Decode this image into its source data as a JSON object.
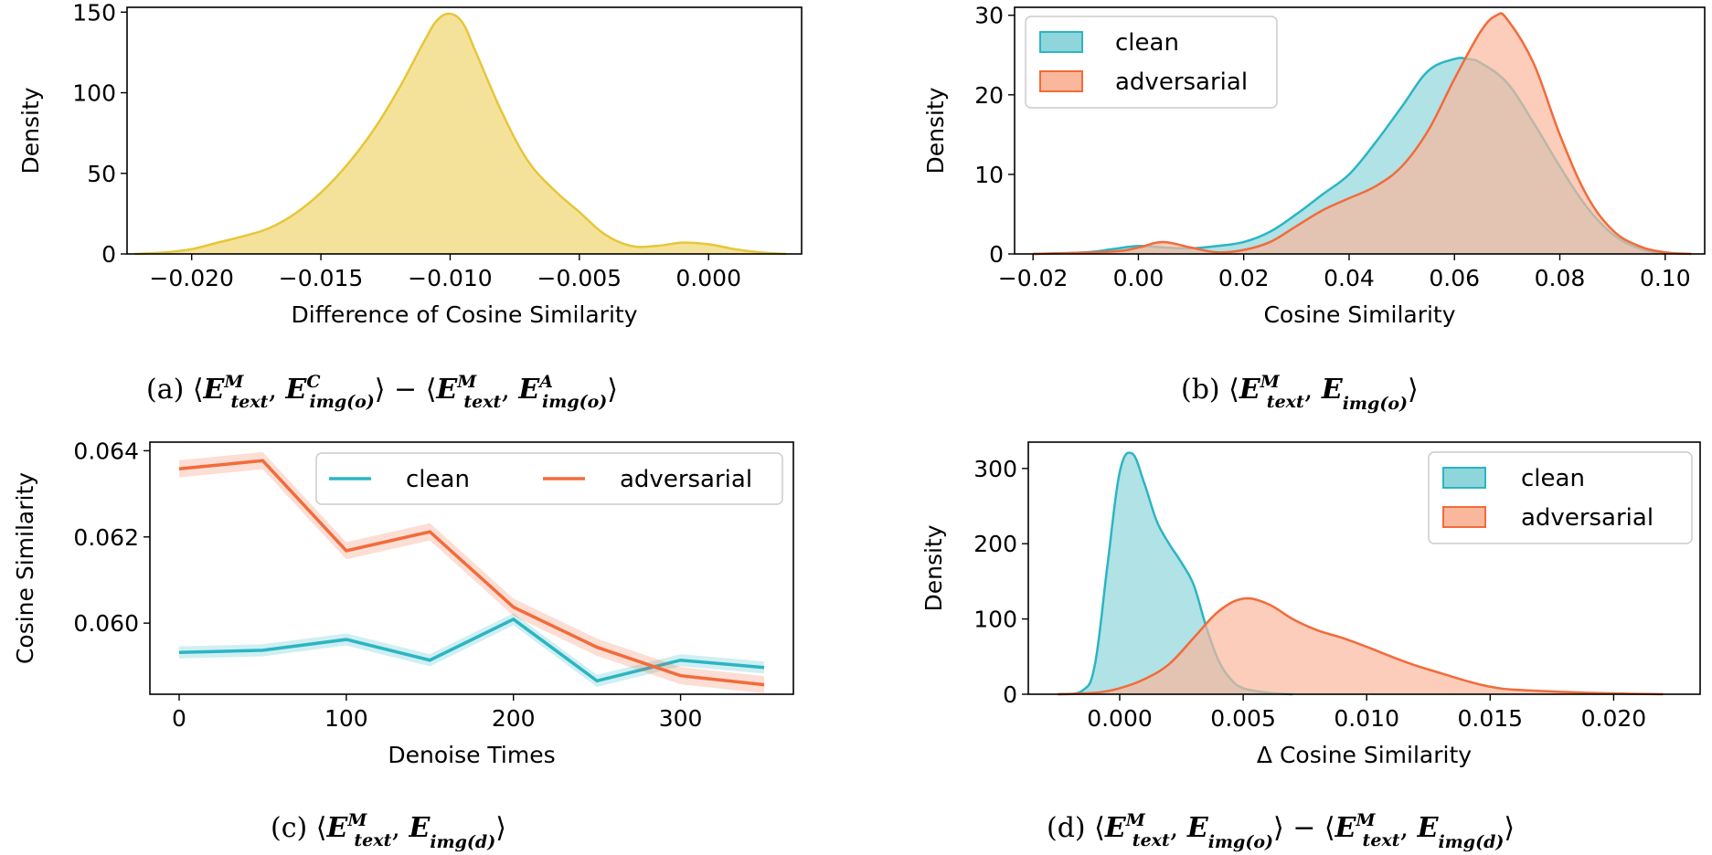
{
  "colors": {
    "yellow_fill": "#f5e29a",
    "yellow_line": "#e6c63a",
    "clean_fill": "#8fd6dc",
    "clean_line": "#2bb5c3",
    "adv_fill": "#f9b89c",
    "adv_line": "#f26b3a",
    "overlap_fill": "#c9ae98"
  },
  "captions": {
    "a": {
      "prefix": "(a)"
    },
    "b": {
      "prefix": "(b)"
    },
    "c": {
      "prefix": "(c)"
    },
    "d": {
      "prefix": "(d)"
    },
    "parts": {
      "E": "E",
      "M": "M",
      "C": "C",
      "A": "A",
      "text": "text",
      "img_o": "img(o)",
      "img_d": "img(d)",
      "minus": "−"
    }
  },
  "chart_data": [
    {
      "id": "a",
      "type": "area",
      "xlabel": "Difference of Cosine Similarity",
      "ylabel": "Density",
      "xlim": [
        -0.0225,
        0.0036
      ],
      "ylim": [
        0,
        153
      ],
      "xticks": [
        -0.02,
        -0.015,
        -0.01,
        -0.005,
        0.0
      ],
      "xtick_labels": [
        "−0.020",
        "−0.015",
        "−0.010",
        "−0.005",
        "0.000"
      ],
      "yticks": [
        0,
        50,
        100,
        150
      ],
      "ytick_labels": [
        "0",
        "50",
        "100",
        "150"
      ],
      "grid": false,
      "series": [
        {
          "color": "yellow",
          "x": [
            -0.0222,
            -0.021,
            -0.02,
            -0.019,
            -0.018,
            -0.017,
            -0.016,
            -0.015,
            -0.014,
            -0.013,
            -0.012,
            -0.011,
            -0.0105,
            -0.01,
            -0.0095,
            -0.009,
            -0.008,
            -0.007,
            -0.006,
            -0.005,
            -0.004,
            -0.003,
            -0.002,
            -0.001,
            0.0,
            0.001,
            0.002,
            0.003
          ],
          "y": [
            0,
            1,
            3,
            7,
            11,
            16,
            25,
            38,
            55,
            76,
            102,
            132,
            145,
            149,
            143,
            125,
            88,
            58,
            40,
            26,
            12,
            5,
            5,
            7,
            6,
            3,
            1,
            0
          ]
        }
      ]
    },
    {
      "id": "b",
      "type": "area",
      "xlabel": "Cosine Similarity",
      "ylabel": "Density",
      "xlim": [
        -0.0235,
        0.1075
      ],
      "ylim": [
        0,
        31
      ],
      "xticks": [
        -0.02,
        0.0,
        0.02,
        0.04,
        0.06,
        0.08,
        0.1
      ],
      "xtick_labels": [
        "−0.02",
        "0.00",
        "0.02",
        "0.04",
        "0.06",
        "0.08",
        "0.10"
      ],
      "yticks": [
        0,
        10,
        20,
        30
      ],
      "ytick_labels": [
        "0",
        "10",
        "20",
        "30"
      ],
      "grid": false,
      "legend": {
        "placement": "top-left",
        "entries": [
          "clean",
          "adversarial"
        ]
      },
      "series": [
        {
          "name": "clean",
          "color": "clean",
          "x": [
            -0.02,
            -0.01,
            -0.005,
            0.0,
            0.005,
            0.01,
            0.015,
            0.02,
            0.025,
            0.03,
            0.035,
            0.04,
            0.045,
            0.05,
            0.055,
            0.06,
            0.0625,
            0.065,
            0.07,
            0.075,
            0.08,
            0.085,
            0.09,
            0.095,
            0.1
          ],
          "y": [
            0,
            0.2,
            0.6,
            1.0,
            0.8,
            0.7,
            1.0,
            1.5,
            2.8,
            5.0,
            7.5,
            10.0,
            14.0,
            18.5,
            23.0,
            24.5,
            24.5,
            24.0,
            21.5,
            16.5,
            11.0,
            6.0,
            2.5,
            0.7,
            0
          ]
        },
        {
          "name": "adversarial",
          "color": "adv",
          "x": [
            -0.02,
            -0.005,
            0.0,
            0.0045,
            0.01,
            0.015,
            0.02,
            0.025,
            0.03,
            0.035,
            0.04,
            0.045,
            0.05,
            0.055,
            0.06,
            0.065,
            0.068,
            0.07,
            0.075,
            0.08,
            0.085,
            0.09,
            0.095,
            0.1,
            0.105
          ],
          "y": [
            0,
            0.3,
            0.8,
            1.5,
            0.8,
            0.2,
            0.5,
            1.5,
            3.5,
            5.5,
            7.0,
            8.5,
            11.0,
            15.5,
            22.0,
            28.0,
            30.0,
            29.5,
            24.0,
            15.0,
            7.5,
            3.0,
            1.0,
            0.2,
            0
          ]
        }
      ]
    },
    {
      "id": "c",
      "type": "line",
      "xlabel": "Denoise Times",
      "ylabel": "Cosine Similarity",
      "xlim": [
        -17.5,
        367.5
      ],
      "ylim": [
        0.05835,
        0.0642
      ],
      "xticks": [
        0,
        100,
        200,
        300
      ],
      "xtick_labels": [
        "0",
        "100",
        "200",
        "300"
      ],
      "yticks": [
        0.06,
        0.062,
        0.064
      ],
      "ytick_labels": [
        "0.060",
        "0.062",
        "0.064"
      ],
      "grid": false,
      "legend": {
        "placement": "top-right",
        "entries": [
          "clean",
          "adversarial"
        ]
      },
      "x": [
        0,
        50,
        100,
        150,
        200,
        250,
        300,
        350
      ],
      "series": [
        {
          "name": "clean",
          "color": "clean",
          "values": [
            0.05932,
            0.05937,
            0.05962,
            0.05914,
            0.06009,
            0.05866,
            0.05914,
            0.05897
          ],
          "band": 0.00014
        },
        {
          "name": "adversarial",
          "color": "adv",
          "values": [
            0.06358,
            0.06377,
            0.06168,
            0.06212,
            0.06037,
            0.05944,
            0.05878,
            0.05857
          ],
          "band": 0.0002
        }
      ]
    },
    {
      "id": "d",
      "type": "area",
      "xlabel": "Δ Cosine Similarity",
      "ylabel": "Density",
      "xlim": [
        -0.0037,
        0.0235
      ],
      "ylim": [
        0,
        335
      ],
      "xticks": [
        0.0,
        0.005,
        0.01,
        0.015,
        0.02
      ],
      "xtick_labels": [
        "0.000",
        "0.005",
        "0.010",
        "0.015",
        "0.020"
      ],
      "yticks": [
        0,
        100,
        200,
        300
      ],
      "ytick_labels": [
        "0",
        "100",
        "200",
        "300"
      ],
      "grid": false,
      "legend": {
        "placement": "top-right",
        "entries": [
          "clean",
          "adversarial"
        ]
      },
      "series": [
        {
          "name": "clean",
          "color": "clean",
          "x": [
            -0.0025,
            -0.0015,
            -0.001,
            -0.0005,
            0.0,
            0.0005,
            0.001,
            0.0015,
            0.002,
            0.0025,
            0.003,
            0.0035,
            0.004,
            0.0045,
            0.005,
            0.006,
            0.007
          ],
          "y": [
            0,
            5,
            40,
            170,
            295,
            320,
            280,
            230,
            200,
            175,
            145,
            90,
            45,
            20,
            8,
            2,
            0
          ]
        },
        {
          "name": "adversarial",
          "color": "adv",
          "x": [
            -0.0025,
            -0.001,
            0.0,
            0.001,
            0.002,
            0.003,
            0.004,
            0.005,
            0.006,
            0.007,
            0.008,
            0.009,
            0.01,
            0.011,
            0.012,
            0.013,
            0.014,
            0.015,
            0.016,
            0.018,
            0.02,
            0.022
          ],
          "y": [
            0,
            2,
            8,
            20,
            40,
            75,
            110,
            127,
            120,
            100,
            85,
            75,
            63,
            50,
            38,
            28,
            18,
            10,
            6,
            3,
            1,
            0
          ]
        }
      ]
    }
  ]
}
